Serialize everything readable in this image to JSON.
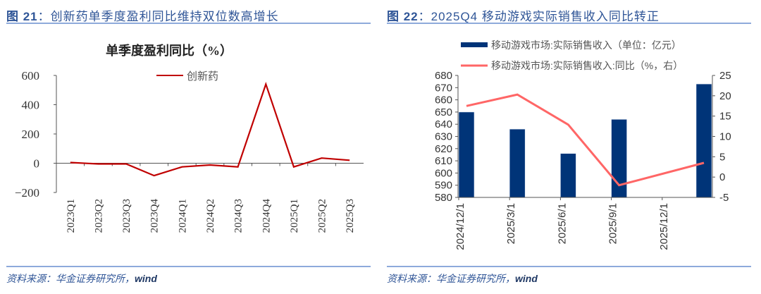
{
  "left": {
    "figure_title_prefix": "图 21",
    "figure_title_text": "：创新药单季度盈利同比维持双位数高增长",
    "source_prefix": "资料来源：华金证券研究所，",
    "source_wind": "wind",
    "chart_title": "单季度盈利同比（%）",
    "legend_label": "创新药"
  },
  "right": {
    "figure_title_prefix": "图 22",
    "figure_title_text": "：2025Q4 移动游戏实际销售收入同比转正",
    "source_prefix": "资料来源：华金证券研究所，",
    "source_wind": "wind",
    "legend_bar_label": "移动游戏市场:实际销售收入（单位：亿元）",
    "legend_line_label": "移动游戏市场:实际销售收入:同比（%，右）"
  },
  "colors": {
    "title_blue": "#2f5597",
    "rule_blue": "#8eaadb",
    "line_red": "#c00000",
    "bar_navy": "#003478",
    "line_pink": "#ff6666"
  },
  "chart_data": [
    {
      "type": "line",
      "title": "单季度盈利同比（%）",
      "xlabel": "",
      "ylabel": "",
      "categories": [
        "2023Q1",
        "2023Q2",
        "2023Q3",
        "2023Q4",
        "2024Q1",
        "2024Q2",
        "2024Q3",
        "2024Q4",
        "2025Q1",
        "2025Q2",
        "2025Q3"
      ],
      "series": [
        {
          "name": "创新药",
          "values": [
            5,
            -5,
            -5,
            -85,
            -25,
            -12,
            -25,
            540,
            -25,
            35,
            20
          ]
        }
      ],
      "ylim": [
        -200,
        600
      ],
      "yticks": [
        -200,
        0,
        200,
        400,
        600
      ],
      "grid": false,
      "legend_position": "top-right"
    },
    {
      "type": "bar",
      "title": "",
      "categories": [
        "2024/12/1",
        "2025/3/1",
        "2025/6/1",
        "2025/9/1",
        "2025/12/1"
      ],
      "series": [
        {
          "name": "移动游戏市场:实际销售收入（单位：亿元）",
          "type": "bar",
          "axis": "left",
          "values": [
            650,
            636,
            616,
            644,
            673
          ]
        },
        {
          "name": "移动游戏市场:实际销售收入:同比（%，右）",
          "type": "line",
          "axis": "right",
          "values": [
            17.5,
            20.3,
            12.9,
            -2.0,
            3.5
          ]
        }
      ],
      "ylim": [
        580,
        680
      ],
      "yticks": [
        580,
        590,
        600,
        610,
        620,
        630,
        640,
        650,
        660,
        670,
        680
      ],
      "y2lim": [
        -5,
        25
      ],
      "y2ticks": [
        -5,
        0,
        5,
        10,
        15,
        20,
        25
      ],
      "grid": false,
      "legend_position": "top"
    }
  ]
}
